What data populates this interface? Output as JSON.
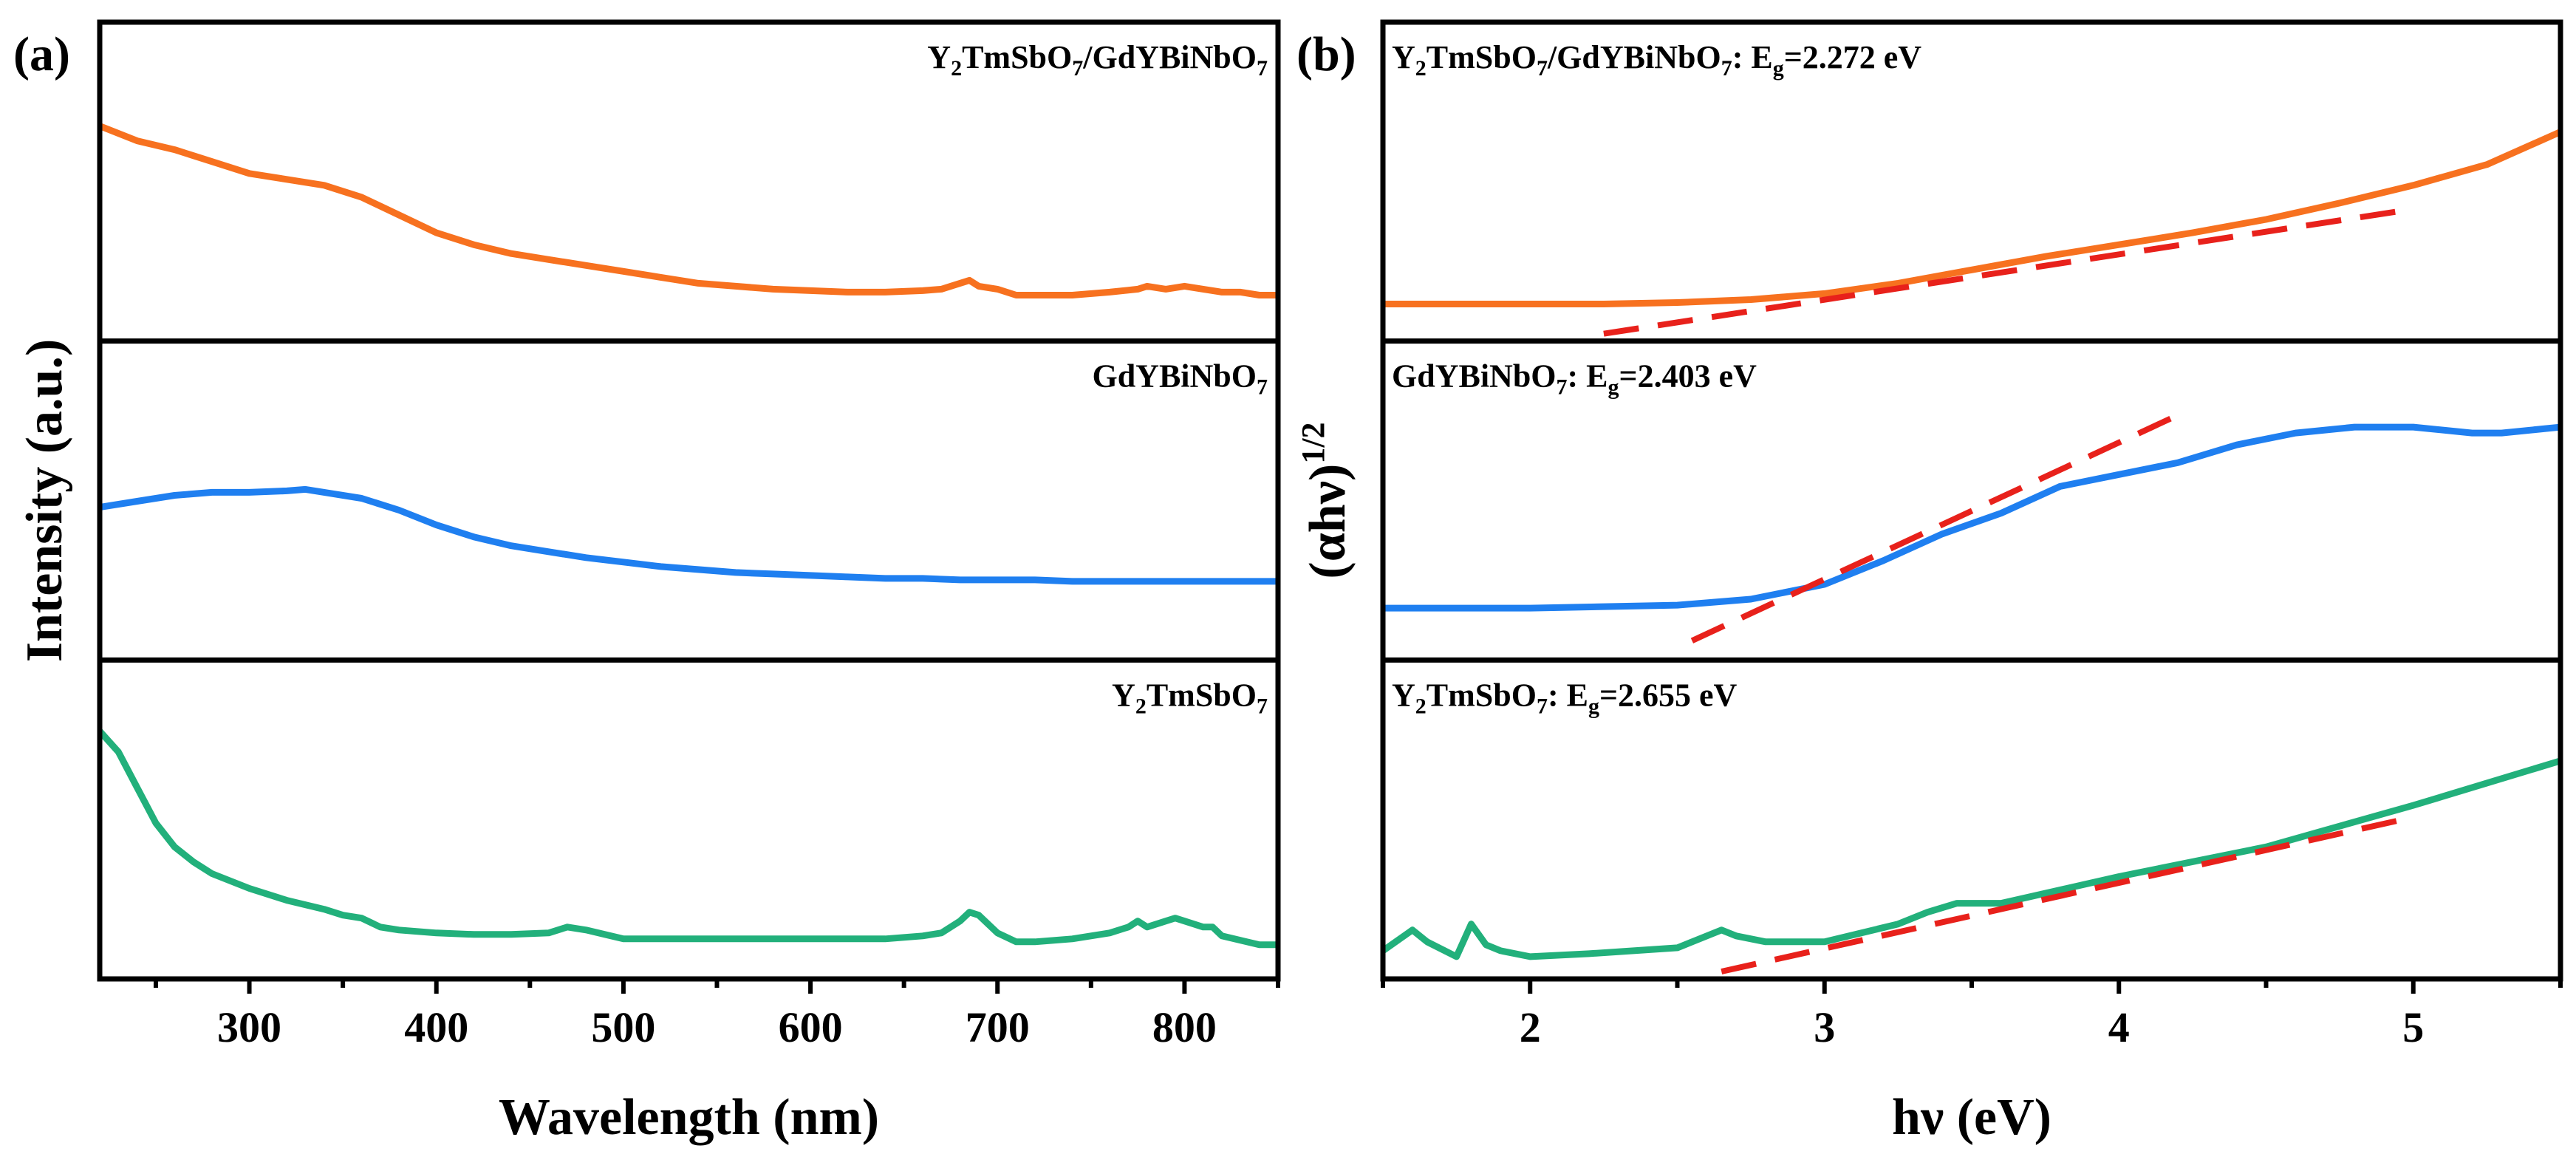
{
  "colors": {
    "orange": "#f7711f",
    "blue": "#1f7ff0",
    "green": "#22b07b",
    "fit": "#e8211b",
    "axis": "#000000"
  },
  "chart_data": [
    {
      "type": "line",
      "id": "a",
      "panel_label": "(a)",
      "xlabel": "Wavelength (nm)",
      "ylabel": "Intensity (a.u.)",
      "xlim": [
        220,
        850
      ],
      "xticks": [
        300,
        400,
        500,
        600,
        700,
        800
      ],
      "xtick_labels": [
        "300",
        "400",
        "500",
        "600",
        "700",
        "800"
      ],
      "ylim": [
        0,
        1
      ],
      "subplots": [
        {
          "label": "Y2TmSbO7/GdYBiNbO7",
          "label_parts": [
            {
              "t": "Y"
            },
            {
              "t": "2",
              "sub": true
            },
            {
              "t": "TmSbO"
            },
            {
              "t": "7",
              "sub": true
            },
            {
              "t": "/GdYBiNbO"
            },
            {
              "t": "7",
              "sub": true
            }
          ],
          "color": "orange",
          "x": [
            220,
            240,
            260,
            280,
            300,
            320,
            340,
            360,
            380,
            400,
            420,
            440,
            460,
            480,
            500,
            520,
            540,
            560,
            580,
            600,
            620,
            640,
            660,
            670,
            680,
            685,
            690,
            700,
            710,
            720,
            740,
            760,
            775,
            780,
            790,
            800,
            810,
            820,
            830,
            840,
            850
          ],
          "y": [
            0.7,
            0.65,
            0.62,
            0.58,
            0.54,
            0.52,
            0.5,
            0.46,
            0.4,
            0.34,
            0.3,
            0.27,
            0.25,
            0.23,
            0.21,
            0.19,
            0.17,
            0.16,
            0.15,
            0.145,
            0.14,
            0.14,
            0.145,
            0.15,
            0.17,
            0.18,
            0.16,
            0.15,
            0.13,
            0.13,
            0.13,
            0.14,
            0.15,
            0.16,
            0.15,
            0.16,
            0.15,
            0.14,
            0.14,
            0.13,
            0.13
          ]
        },
        {
          "label": "GdYBiNbO7",
          "label_parts": [
            {
              "t": "GdYBiNbO"
            },
            {
              "t": "7",
              "sub": true
            }
          ],
          "color": "blue",
          "x": [
            220,
            240,
            260,
            280,
            300,
            320,
            330,
            340,
            360,
            380,
            400,
            420,
            440,
            460,
            480,
            500,
            520,
            540,
            560,
            580,
            600,
            620,
            640,
            660,
            680,
            700,
            720,
            740,
            760,
            780,
            800,
            820,
            840,
            850
          ],
          "y": [
            0.49,
            0.51,
            0.53,
            0.54,
            0.54,
            0.545,
            0.55,
            0.54,
            0.52,
            0.48,
            0.43,
            0.39,
            0.36,
            0.34,
            0.32,
            0.305,
            0.29,
            0.28,
            0.27,
            0.265,
            0.26,
            0.255,
            0.25,
            0.25,
            0.245,
            0.245,
            0.245,
            0.24,
            0.24,
            0.24,
            0.24,
            0.24,
            0.24,
            0.24
          ]
        },
        {
          "label": "Y2TmSbO7",
          "label_parts": [
            {
              "t": "Y"
            },
            {
              "t": "2",
              "sub": true
            },
            {
              "t": "TmSbO"
            },
            {
              "t": "7",
              "sub": true
            }
          ],
          "color": "green",
          "x": [
            220,
            230,
            240,
            250,
            260,
            270,
            280,
            300,
            320,
            340,
            350,
            360,
            370,
            380,
            400,
            420,
            440,
            460,
            470,
            480,
            500,
            550,
            600,
            640,
            660,
            670,
            680,
            685,
            690,
            700,
            710,
            720,
            740,
            760,
            770,
            775,
            780,
            790,
            795,
            800,
            810,
            815,
            820,
            840,
            850
          ],
          "y": [
            0.81,
            0.74,
            0.62,
            0.5,
            0.42,
            0.37,
            0.33,
            0.28,
            0.24,
            0.21,
            0.19,
            0.18,
            0.15,
            0.14,
            0.13,
            0.125,
            0.125,
            0.13,
            0.15,
            0.14,
            0.11,
            0.11,
            0.11,
            0.11,
            0.12,
            0.13,
            0.17,
            0.2,
            0.19,
            0.13,
            0.1,
            0.1,
            0.11,
            0.13,
            0.15,
            0.17,
            0.15,
            0.17,
            0.18,
            0.17,
            0.15,
            0.15,
            0.12,
            0.09,
            0.09
          ]
        }
      ]
    },
    {
      "type": "line",
      "id": "b",
      "panel_label": "(b)",
      "xlabel": "hν (eV)",
      "ylabel_main": "(αhν)",
      "ylabel_sup": "1/2",
      "xlim": [
        1.5,
        5.5
      ],
      "xticks": [
        2,
        3,
        4,
        5
      ],
      "xtick_labels": [
        "2",
        "3",
        "4",
        "5"
      ],
      "ylim": [
        0,
        1
      ],
      "subplots": [
        {
          "label": "Y2TmSbO7/GdYBiNbO7: Eg=2.272 eV",
          "label_parts": [
            {
              "t": "Y"
            },
            {
              "t": "2",
              "sub": true
            },
            {
              "t": "TmSbO"
            },
            {
              "t": "7",
              "sub": true
            },
            {
              "t": "/GdYBiNbO"
            },
            {
              "t": "7",
              "sub": true
            },
            {
              "t": ": E"
            },
            {
              "t": "g",
              "sub": true
            },
            {
              "t": "=2.272 eV"
            }
          ],
          "color": "orange",
          "band_gap_eV": 2.272,
          "x": [
            1.5,
            1.75,
            2.0,
            2.25,
            2.5,
            2.75,
            3.0,
            3.25,
            3.5,
            3.75,
            4.0,
            4.25,
            4.5,
            4.75,
            5.0,
            5.25,
            5.5
          ],
          "y": [
            0.1,
            0.1,
            0.1,
            0.1,
            0.105,
            0.115,
            0.135,
            0.17,
            0.215,
            0.26,
            0.3,
            0.34,
            0.385,
            0.44,
            0.5,
            0.57,
            0.68
          ],
          "fit_x": [
            2.25,
            5.0
          ],
          "fit_y": [
            0.0,
            0.42
          ]
        },
        {
          "label": "GdYBiNbO7: Eg=2.403 eV",
          "label_parts": [
            {
              "t": "GdYBiNbO"
            },
            {
              "t": "7",
              "sub": true
            },
            {
              "t": ": E"
            },
            {
              "t": "g",
              "sub": true
            },
            {
              "t": "=2.403 eV"
            }
          ],
          "color": "blue",
          "band_gap_eV": 2.403,
          "x": [
            1.5,
            1.75,
            2.0,
            2.25,
            2.5,
            2.75,
            3.0,
            3.2,
            3.4,
            3.6,
            3.8,
            3.85,
            4.0,
            4.2,
            4.4,
            4.6,
            4.8,
            5.0,
            5.2,
            5.3,
            5.5
          ],
          "y": [
            0.15,
            0.15,
            0.15,
            0.155,
            0.16,
            0.18,
            0.23,
            0.31,
            0.4,
            0.47,
            0.56,
            0.57,
            0.6,
            0.64,
            0.7,
            0.74,
            0.76,
            0.76,
            0.74,
            0.74,
            0.76
          ],
          "fit_x": [
            2.55,
            4.2
          ],
          "fit_y": [
            0.04,
            0.8
          ]
        },
        {
          "label": "Y2TmSbO7: Eg=2.655 eV",
          "label_parts": [
            {
              "t": "Y"
            },
            {
              "t": "2",
              "sub": true
            },
            {
              "t": "TmSbO"
            },
            {
              "t": "7",
              "sub": true
            },
            {
              "t": ": E"
            },
            {
              "t": "g",
              "sub": true
            },
            {
              "t": "=2.655 eV"
            }
          ],
          "color": "green",
          "band_gap_eV": 2.655,
          "x": [
            1.5,
            1.6,
            1.65,
            1.75,
            1.8,
            1.85,
            1.9,
            2.0,
            2.2,
            2.5,
            2.65,
            2.7,
            2.8,
            3.0,
            3.25,
            3.35,
            3.45,
            3.6,
            4.0,
            4.5,
            5.0,
            5.5
          ],
          "y": [
            0.07,
            0.14,
            0.1,
            0.05,
            0.16,
            0.09,
            0.07,
            0.05,
            0.06,
            0.08,
            0.14,
            0.12,
            0.1,
            0.1,
            0.16,
            0.2,
            0.23,
            0.23,
            0.32,
            0.42,
            0.56,
            0.71
          ],
          "fit_x": [
            2.65,
            5.0
          ],
          "fit_y": [
            0.0,
            0.52
          ]
        }
      ]
    }
  ]
}
